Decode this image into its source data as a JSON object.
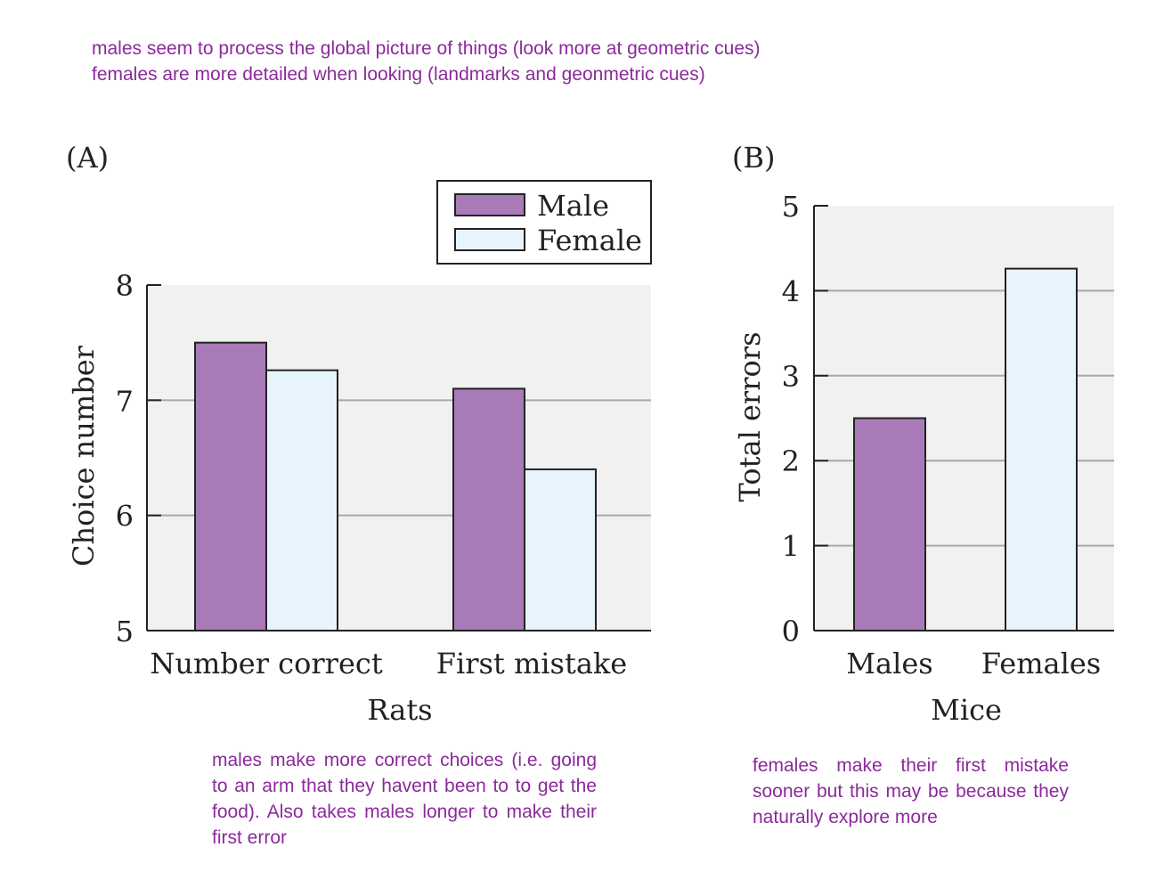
{
  "annotations": {
    "top_lines": [
      "males seem to process the global picture of things (look more at geometric cues)",
      "females are more detailed when looking (landmarks and geonmetric cues)"
    ],
    "panel_a_note": "males make more correct choices (i.e. going to an arm that they havent been to to get the food). Also takes males longer to make their first error",
    "panel_b_note": "females make their first mistake sooner but this may be because they naturally explore more"
  },
  "colors": {
    "male": "#A97AB8",
    "female": "#E8F4FC",
    "plot_bg": "#F1F1F2",
    "grid": "#A8A8A8",
    "annotation": "#8B2A9B"
  },
  "chart_data": [
    {
      "panel_label": "(A)",
      "type": "bar",
      "categories": [
        "Number correct",
        "First mistake"
      ],
      "series": [
        {
          "name": "Male",
          "values": [
            7.5,
            7.1
          ]
        },
        {
          "name": "Female",
          "values": [
            7.26,
            6.4
          ]
        }
      ],
      "xlabel": "Rats",
      "ylabel": "Choice number",
      "ylim": [
        5,
        8
      ],
      "yticks": [
        5,
        6,
        7,
        8
      ],
      "grid": true,
      "legend": "top-right"
    },
    {
      "panel_label": "(B)",
      "type": "bar",
      "categories": [
        "Males",
        "Females"
      ],
      "values": [
        2.5,
        4.26
      ],
      "xlabel": "Mice",
      "ylabel": "Total errors",
      "ylim": [
        0,
        5
      ],
      "yticks": [
        0,
        1,
        2,
        3,
        4,
        5
      ],
      "grid": true
    }
  ]
}
